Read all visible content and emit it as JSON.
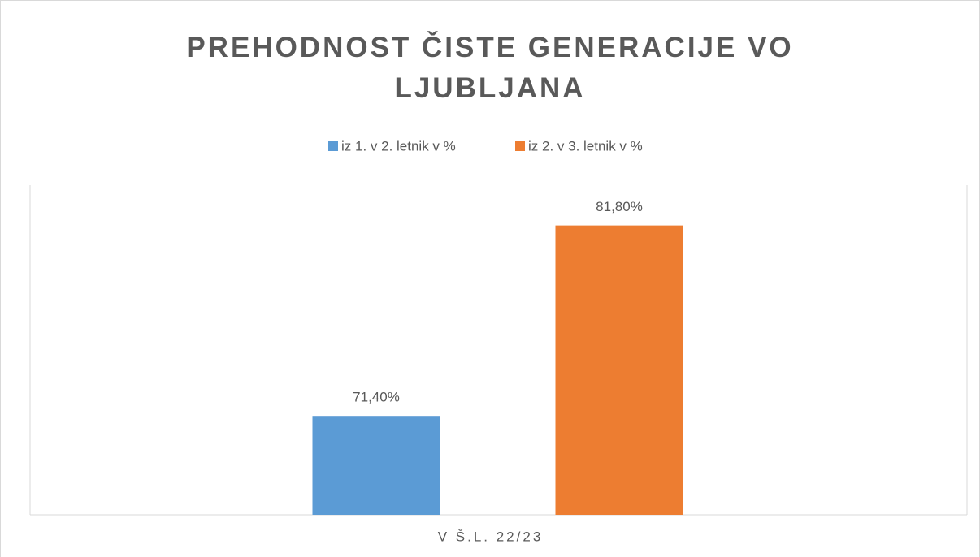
{
  "chart_data": {
    "type": "bar",
    "title": "PREHODNOST ČISTE GENERACIJE VO LJUBLJANA",
    "categories": [
      "V Š.L. 22/23"
    ],
    "series": [
      {
        "name": "iz 1. v 2. letnik v %",
        "color": "#5b9bd5",
        "values": [
          71.4
        ],
        "value_labels": [
          "71,40%"
        ]
      },
      {
        "name": "iz 2. v 3. letnik v %",
        "color": "#ed7d31",
        "values": [
          81.8
        ],
        "value_labels": [
          "81,80%"
        ]
      }
    ],
    "ylim": [
      66,
      84
    ],
    "legend": "top",
    "grid": false
  }
}
